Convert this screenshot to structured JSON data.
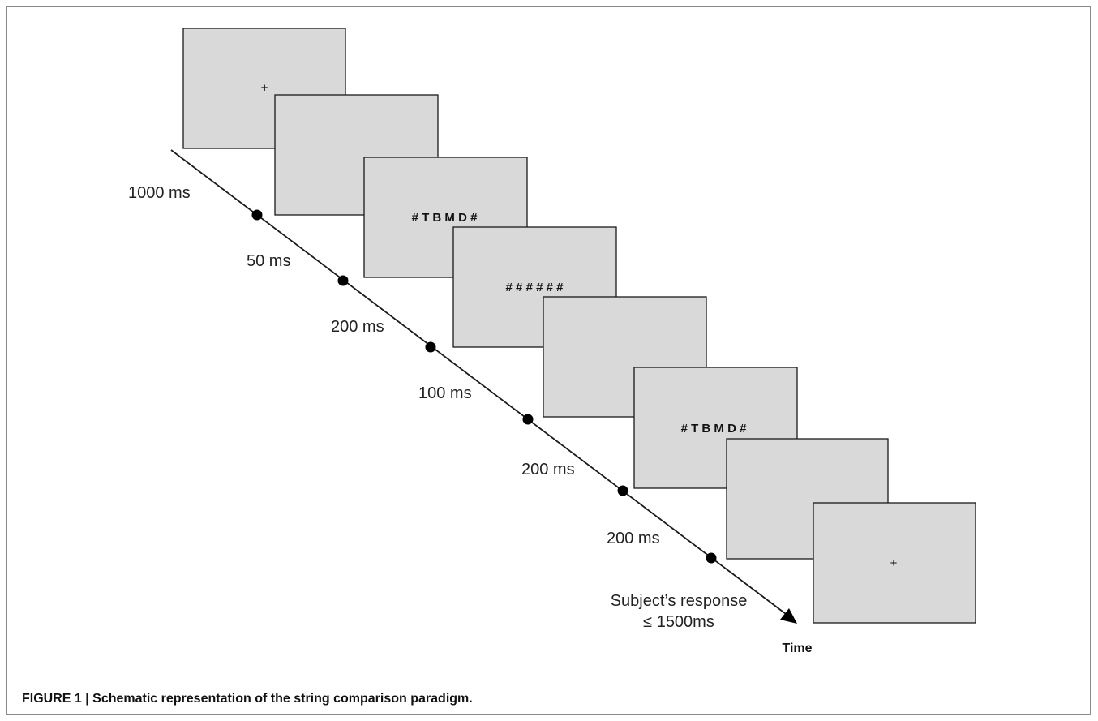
{
  "figure": {
    "caption": "FIGURE 1 | Schematic representation of the string comparison paradigm.",
    "screens": [
      {
        "text": "+"
      },
      {
        "text": ""
      },
      {
        "text": "# T B M D #"
      },
      {
        "text": "# # # # # #"
      },
      {
        "text": ""
      },
      {
        "text": "# T B M D #"
      },
      {
        "text": ""
      },
      {
        "text": "+"
      }
    ],
    "durations": [
      {
        "text": "1000 ms"
      },
      {
        "text": "50 ms"
      },
      {
        "text": "200 ms"
      },
      {
        "text": "100 ms"
      },
      {
        "text": "200 ms"
      },
      {
        "text": "200 ms"
      }
    ],
    "response_label": {
      "line1": "Subject’s response",
      "line2": "≤ 1500ms"
    },
    "axis_label": "Time"
  }
}
